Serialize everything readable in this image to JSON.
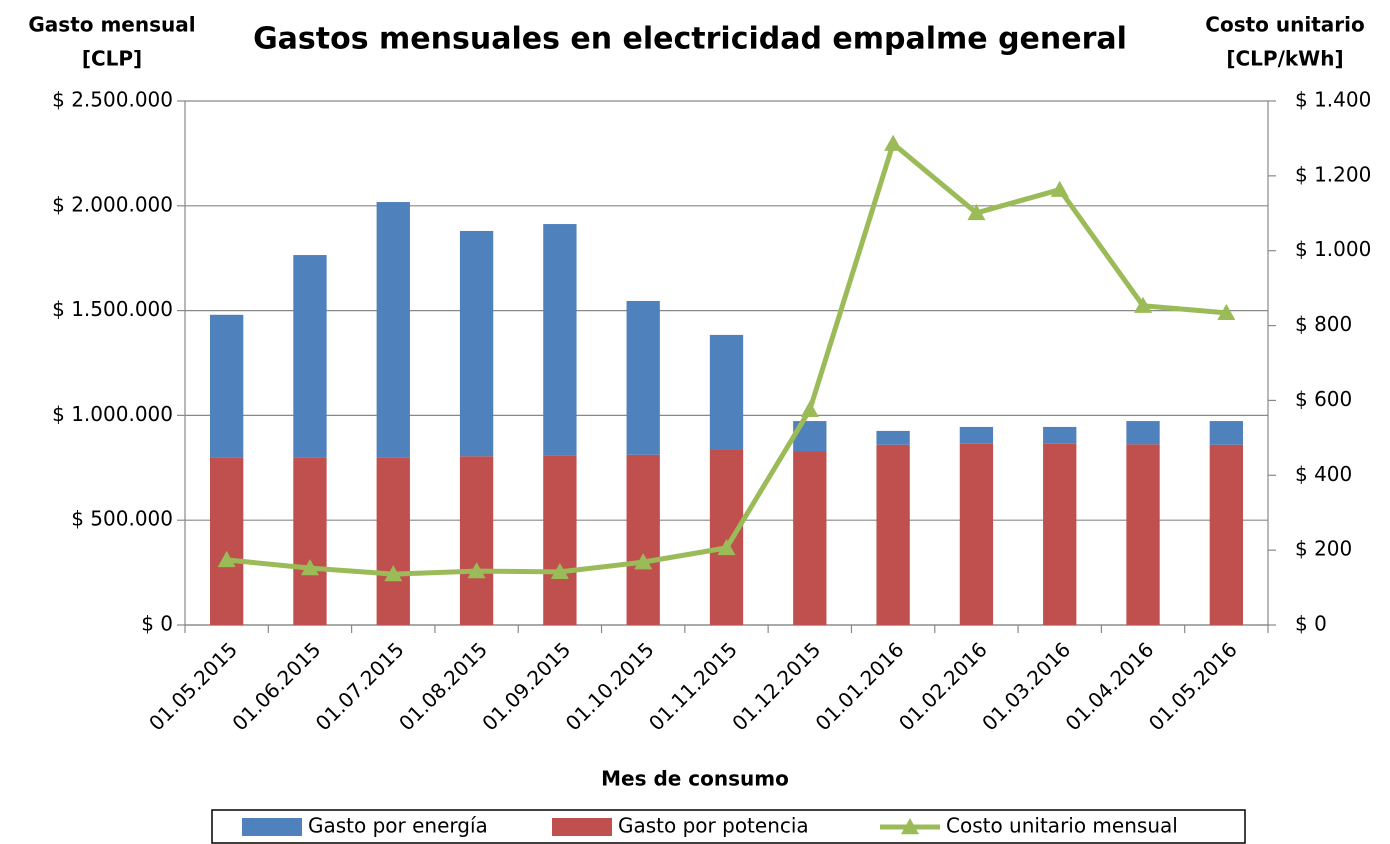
{
  "chart_data": {
    "type": "bar_line",
    "title": "Gastos mensuales en electricidad empalme general",
    "ylabel": [
      "Gasto mensual",
      "[CLP]"
    ],
    "y2label": [
      "Costo unitario",
      "[CLP/kWh]"
    ],
    "xlabel": "Mes de consumo",
    "categories": [
      "01.05.2015",
      "01.06.2015",
      "01.07.2015",
      "01.08.2015",
      "01.09.2015",
      "01.10.2015",
      "01.11.2015",
      "01.12.2015",
      "01.01.2016",
      "01.02.2016",
      "01.03.2016",
      "01.04.2016",
      "01.05.2016"
    ],
    "series": [
      {
        "name": "Gasto por energía",
        "color": "#4f81bd",
        "type": "bar",
        "values": [
          680000,
          965000,
          1218000,
          1075000,
          1105000,
          734000,
          549000,
          143000,
          66000,
          80000,
          80000,
          111000,
          113000
        ]
      },
      {
        "name": "Gasto por potencia",
        "color": "#c0504d",
        "type": "bar",
        "values": [
          800000,
          800000,
          800000,
          805000,
          808000,
          812000,
          835000,
          830000,
          860000,
          865000,
          865000,
          862000,
          860000
        ]
      },
      {
        "name": "Costo unitario mensual",
        "color": "#9bbb59",
        "type": "line",
        "axis": "y2",
        "values": [
          174,
          152,
          136,
          144,
          142,
          168,
          206,
          575,
          1286,
          1101,
          1163,
          853,
          834
        ]
      }
    ],
    "ylim": [
      0,
      2500000
    ],
    "yticks": [
      {
        "value": 0,
        "label": "$ 0"
      },
      {
        "value": 500000,
        "label": "$ 500.000"
      },
      {
        "value": 1000000,
        "label": "$ 1.000.000"
      },
      {
        "value": 1500000,
        "label": "$ 1.500.000"
      },
      {
        "value": 2000000,
        "label": "$ 2.000.000"
      },
      {
        "value": 2500000,
        "label": "$ 2.500.000"
      }
    ],
    "y2lim": [
      0,
      1400
    ],
    "y2ticks": [
      {
        "value": 0,
        "label": "$ 0"
      },
      {
        "value": 200,
        "label": "$ 200"
      },
      {
        "value": 400,
        "label": "$ 400"
      },
      {
        "value": 600,
        "label": "$ 600"
      },
      {
        "value": 800,
        "label": "$ 800"
      },
      {
        "value": 1000,
        "label": "$ 1.000"
      },
      {
        "value": 1200,
        "label": "$ 1.200"
      },
      {
        "value": 1400,
        "label": "$ 1.400"
      }
    ],
    "grid": true,
    "legend": "bottom"
  }
}
